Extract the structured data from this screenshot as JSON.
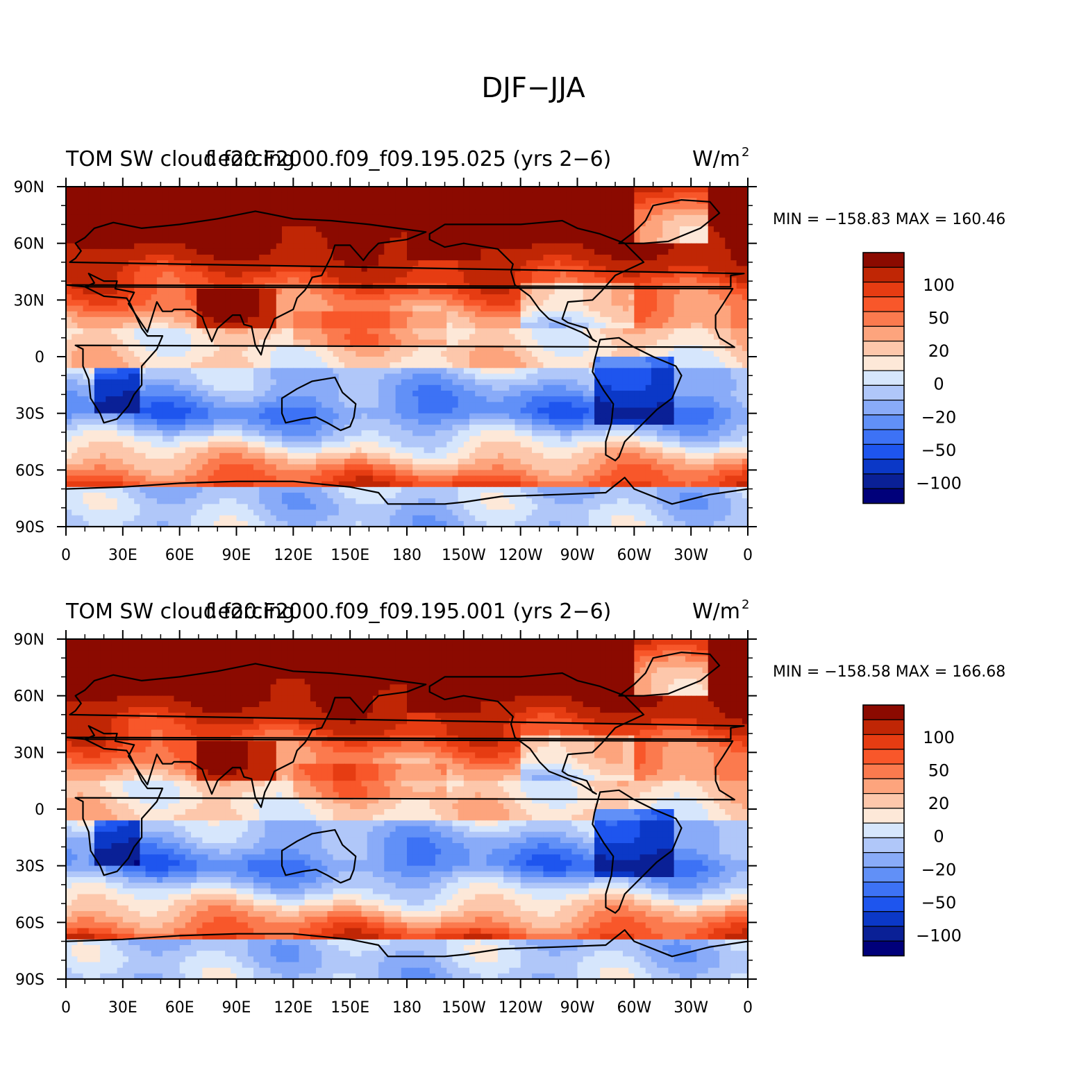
{
  "figure": {
    "title": "DJF−JJA"
  },
  "panels": [
    {
      "left_title": "TOM SW cloud forcing",
      "center_title": "f.e20.F2000.f09_f09.195.025 (yrs 2−6)",
      "units": "W/m",
      "units_exp": "2",
      "stats": "MIN = −158.83 MAX = 160.46"
    },
    {
      "left_title": "TOM SW cloud forcing",
      "center_title": "f.e20.F2000.f09_f09.195.001 (yrs 2−6)",
      "units": "W/m",
      "units_exp": "2",
      "stats": "MIN = −158.58 MAX = 166.68"
    }
  ],
  "chart_data": {
    "type": "heatmap",
    "projection": "cylindrical equidistant",
    "x_range": [
      0,
      360
    ],
    "y_range": [
      -90,
      90
    ],
    "x_tick_labels": [
      "0",
      "30E",
      "60E",
      "90E",
      "120E",
      "150E",
      "180",
      "150W",
      "120W",
      "90W",
      "60W",
      "30W",
      "0"
    ],
    "y_tick_labels": [
      "90N",
      "60N",
      "30N",
      "0",
      "30S",
      "60S",
      "90S"
    ],
    "colorbar": {
      "labels": [
        "100",
        "50",
        "20",
        "0",
        "−20",
        "−50",
        "−100"
      ],
      "levels": [
        -140,
        -120,
        -100,
        -80,
        -60,
        -50,
        -40,
        -30,
        -20,
        -10,
        0,
        10,
        20,
        30,
        40,
        50,
        60,
        80,
        100,
        120,
        140
      ],
      "colors": [
        "#00007a",
        "#0a2096",
        "#0b38c7",
        "#1e55ee",
        "#3d72f5",
        "#6190f7",
        "#89abf8",
        "#b0c7f9",
        "#d6e6fc",
        "#fde8d8",
        "#fdc7ab",
        "#fda47d",
        "#fb7a4e",
        "#f8572a",
        "#e63c12",
        "#c02605",
        "#8b0a00"
      ]
    }
  }
}
